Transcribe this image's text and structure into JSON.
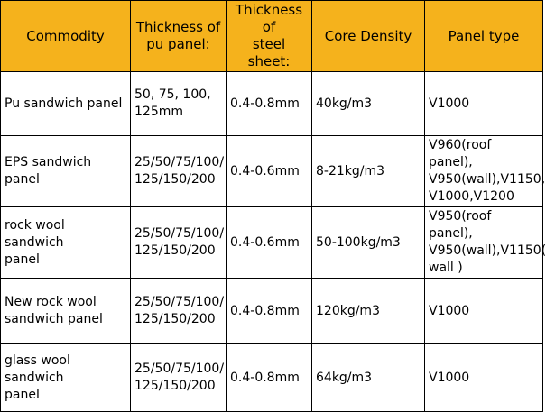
{
  "table": {
    "headers": [
      "Commodity",
      "Thickness of\npu panel:",
      "Thickness of\nsteel sheet:",
      "Core Density",
      "Panel type"
    ],
    "rows": [
      {
        "commodity": "Pu sandwich panel",
        "pu_thickness": "50, 75, 100,\n125mm",
        "steel_thickness": "0.4-0.8mm",
        "core_density": "40kg/m3",
        "panel_type": "V1000"
      },
      {
        "commodity": "EPS sandwich panel",
        "pu_thickness": "25/50/75/100/\n125/150/200",
        "steel_thickness": "0.4-0.6mm",
        "core_density": "8-21kg/m3",
        "panel_type": "V960(roof panel),\nV950(wall),V1150,\nV1000,V1200"
      },
      {
        "commodity": "rock wool  sandwich\npanel",
        "pu_thickness": "25/50/75/100/\n125/150/200",
        "steel_thickness": "0.4-0.6mm",
        "core_density": "50-100kg/m3",
        "panel_type": "V950(roof panel),\nV950(wall),V1150(\nwall )"
      },
      {
        "commodity": "New rock wool\nsandwich panel",
        "pu_thickness": "25/50/75/100/\n125/150/200",
        "steel_thickness": "0.4-0.8mm",
        "core_density": "120kg/m3",
        "panel_type": "V1000"
      },
      {
        "commodity": "glass wool  sandwich\npanel",
        "pu_thickness": "25/50/75/100/\n125/150/200",
        "steel_thickness": "0.4-0.8mm",
        "core_density": "64kg/m3",
        "panel_type": "V1000"
      }
    ]
  },
  "colors": {
    "header_background": "#f5b21c",
    "border": "#000000"
  }
}
